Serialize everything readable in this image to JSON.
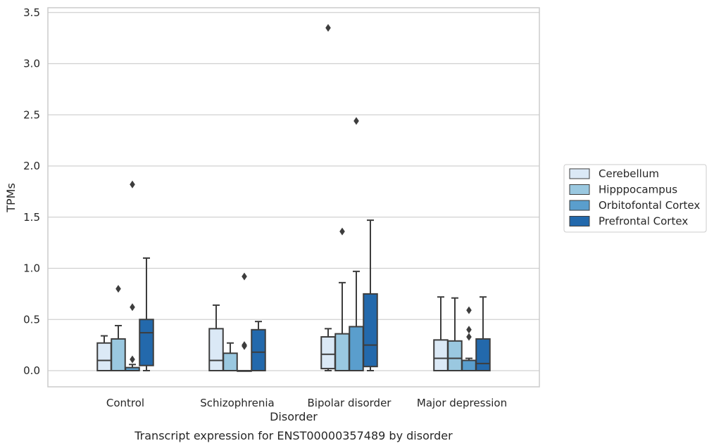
{
  "chart_data": {
    "type": "boxplot",
    "title": "Transcript expression for ENST00000357489 by disorder",
    "xlabel": "Disorder",
    "ylabel": "TPMs",
    "ylim": [
      -0.16,
      3.53
    ],
    "yticks": [
      0.0,
      0.5,
      1.0,
      1.5,
      2.0,
      2.5,
      3.0,
      3.5
    ],
    "ytick_labels": [
      "0.0",
      "0.5",
      "1.0",
      "1.5",
      "2.0",
      "2.5",
      "3.0",
      "3.5"
    ],
    "grid": true,
    "legend_position": "right",
    "categories": [
      "Control",
      "Schizophrenia",
      "Bipolar disorder",
      "Major depression"
    ],
    "series": [
      {
        "name": "Cerebellum",
        "color": "#dbe9f6",
        "boxes": [
          {
            "whislo": 0.0,
            "q1": 0.0,
            "med": 0.1,
            "q3": 0.27,
            "whishi": 0.34,
            "fliers": []
          },
          {
            "whislo": 0.0,
            "q1": 0.0,
            "med": 0.1,
            "q3": 0.41,
            "whishi": 0.64,
            "fliers": []
          },
          {
            "whislo": 0.0,
            "q1": 0.02,
            "med": 0.16,
            "q3": 0.33,
            "whishi": 0.41,
            "fliers": [
              3.35
            ]
          },
          {
            "whislo": 0.0,
            "q1": 0.0,
            "med": 0.12,
            "q3": 0.3,
            "whishi": 0.72,
            "fliers": []
          }
        ]
      },
      {
        "name": "Hipppocampus",
        "color": "#9ac8e0",
        "boxes": [
          {
            "whislo": 0.0,
            "q1": 0.0,
            "med": 0.0,
            "q3": 0.31,
            "whishi": 0.44,
            "fliers": [
              0.8
            ]
          },
          {
            "whislo": 0.0,
            "q1": 0.0,
            "med": 0.0,
            "q3": 0.17,
            "whishi": 0.27,
            "fliers": []
          },
          {
            "whislo": 0.0,
            "q1": 0.0,
            "med": 0.0,
            "q3": 0.36,
            "whishi": 0.86,
            "fliers": [
              1.36
            ]
          },
          {
            "whislo": 0.0,
            "q1": 0.0,
            "med": 0.12,
            "q3": 0.29,
            "whishi": 0.71,
            "fliers": []
          }
        ]
      },
      {
        "name": "Orbitofontal Cortex",
        "color": "#5a9ecd",
        "boxes": [
          {
            "whislo": 0.0,
            "q1": 0.0,
            "med": 0.0,
            "q3": 0.03,
            "whishi": 0.06,
            "fliers": [
              0.11,
              0.62,
              1.82
            ]
          },
          {
            "whislo": 0.0,
            "q1": 0.0,
            "med": 0.0,
            "q3": 0.0,
            "whishi": 0.0,
            "fliers": [
              0.24,
              0.25,
              0.92
            ]
          },
          {
            "whislo": 0.0,
            "q1": 0.0,
            "med": 0.0,
            "q3": 0.43,
            "whishi": 0.97,
            "fliers": [
              2.44
            ]
          },
          {
            "whislo": 0.0,
            "q1": 0.0,
            "med": 0.0,
            "q3": 0.1,
            "whishi": 0.12,
            "fliers": [
              0.33,
              0.4,
              0.59
            ]
          }
        ]
      },
      {
        "name": "Prefrontal Cortex",
        "color": "#2369ac",
        "boxes": [
          {
            "whislo": 0.0,
            "q1": 0.05,
            "med": 0.37,
            "q3": 0.5,
            "whishi": 1.1,
            "fliers": []
          },
          {
            "whislo": 0.0,
            "q1": 0.0,
            "med": 0.18,
            "q3": 0.4,
            "whishi": 0.48,
            "fliers": []
          },
          {
            "whislo": 0.0,
            "q1": 0.04,
            "med": 0.25,
            "q3": 0.75,
            "whishi": 1.47,
            "fliers": []
          },
          {
            "whislo": 0.0,
            "q1": 0.0,
            "med": 0.07,
            "q3": 0.31,
            "whishi": 0.72,
            "fliers": []
          }
        ]
      }
    ]
  }
}
